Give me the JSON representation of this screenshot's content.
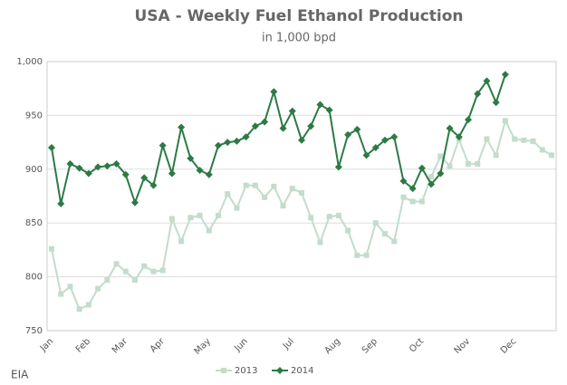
{
  "chart_data": {
    "type": "line",
    "title": "USA - Weekly Fuel Ethanol Production",
    "subtitle": "in 1,000 bpd",
    "source": "EIA",
    "categories": [
      "Jan",
      null,
      null,
      null,
      "Feb",
      null,
      null,
      null,
      "Mar",
      null,
      null,
      null,
      "Apr",
      null,
      null,
      null,
      null,
      "May",
      null,
      null,
      null,
      "Jun",
      null,
      null,
      null,
      null,
      "Jul",
      null,
      null,
      null,
      null,
      "Aug",
      null,
      null,
      null,
      "Sep",
      null,
      null,
      null,
      null,
      "Oct",
      null,
      null,
      null,
      null,
      "Nov",
      null,
      null,
      null,
      null,
      "Dec",
      null,
      null,
      null,
      null
    ],
    "series": [
      {
        "name": "2013",
        "color": "#c3dccb",
        "marker": "square",
        "values": [
          826,
          784,
          791,
          770,
          774,
          789,
          797,
          812,
          805,
          797,
          810,
          805,
          806,
          854,
          833,
          855,
          857,
          843,
          857,
          877,
          864,
          885,
          885,
          874,
          884,
          866,
          882,
          878,
          855,
          832,
          856,
          857,
          843,
          820,
          820,
          850,
          840,
          833,
          874,
          870,
          870,
          893,
          912,
          903,
          928,
          905,
          905,
          928,
          913,
          945,
          928,
          927,
          926,
          918,
          913
        ]
      },
      {
        "name": "2014",
        "color": "#2c7a45",
        "marker": "diamond",
        "values": [
          920,
          868,
          905,
          901,
          896,
          902,
          903,
          905,
          895,
          869,
          892,
          885,
          922,
          896,
          939,
          910,
          899,
          895,
          922,
          925,
          926,
          930,
          940,
          944,
          972,
          938,
          954,
          927,
          940,
          960,
          955,
          902,
          932,
          937,
          913,
          920,
          927,
          930,
          889,
          882,
          901,
          886,
          896,
          938,
          930,
          946,
          970,
          982,
          962,
          988,
          null,
          null,
          null,
          null,
          null
        ]
      }
    ],
    "ylim": [
      750,
      1000
    ],
    "yticks": [
      750,
      800,
      850,
      900,
      950,
      {
        "value": 1000,
        "label": "1,000"
      }
    ],
    "grid": true,
    "legend": "bottom"
  }
}
